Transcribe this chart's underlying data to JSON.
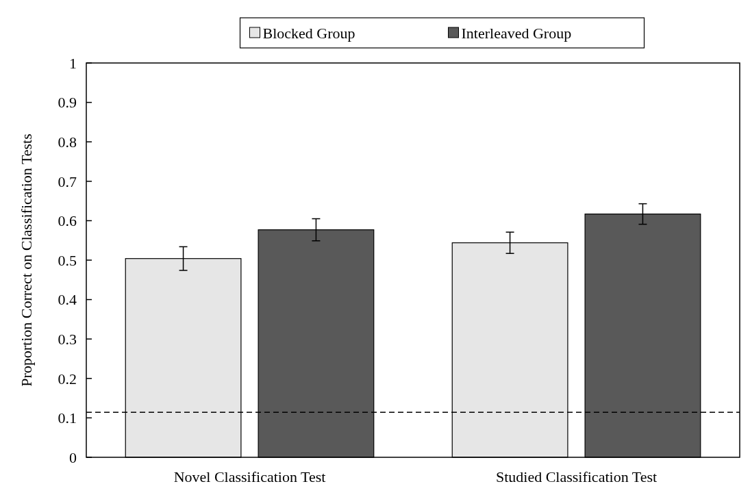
{
  "chart_data": {
    "type": "bar",
    "ylabel": "Proportion Correct on Classification Tests",
    "categories": [
      "Novel Classification Test",
      "Studied Classification Test"
    ],
    "series": [
      {
        "name": "Blocked Group",
        "color": "#e6e6e6",
        "values": [
          0.504,
          0.544
        ],
        "errors": [
          0.03,
          0.027
        ]
      },
      {
        "name": "Interleaved Group",
        "color": "#595959",
        "values": [
          0.577,
          0.617
        ],
        "errors": [
          0.028,
          0.026
        ]
      }
    ],
    "ylim": [
      0,
      1
    ],
    "yticks": [
      0,
      0.1,
      0.2,
      0.3,
      0.4,
      0.5,
      0.6,
      0.7,
      0.8,
      0.9,
      1
    ],
    "ref_lines": [
      {
        "axis": "y",
        "value": 0.114,
        "line_style": "dashed"
      }
    ],
    "legend": "top",
    "grid": false
  }
}
